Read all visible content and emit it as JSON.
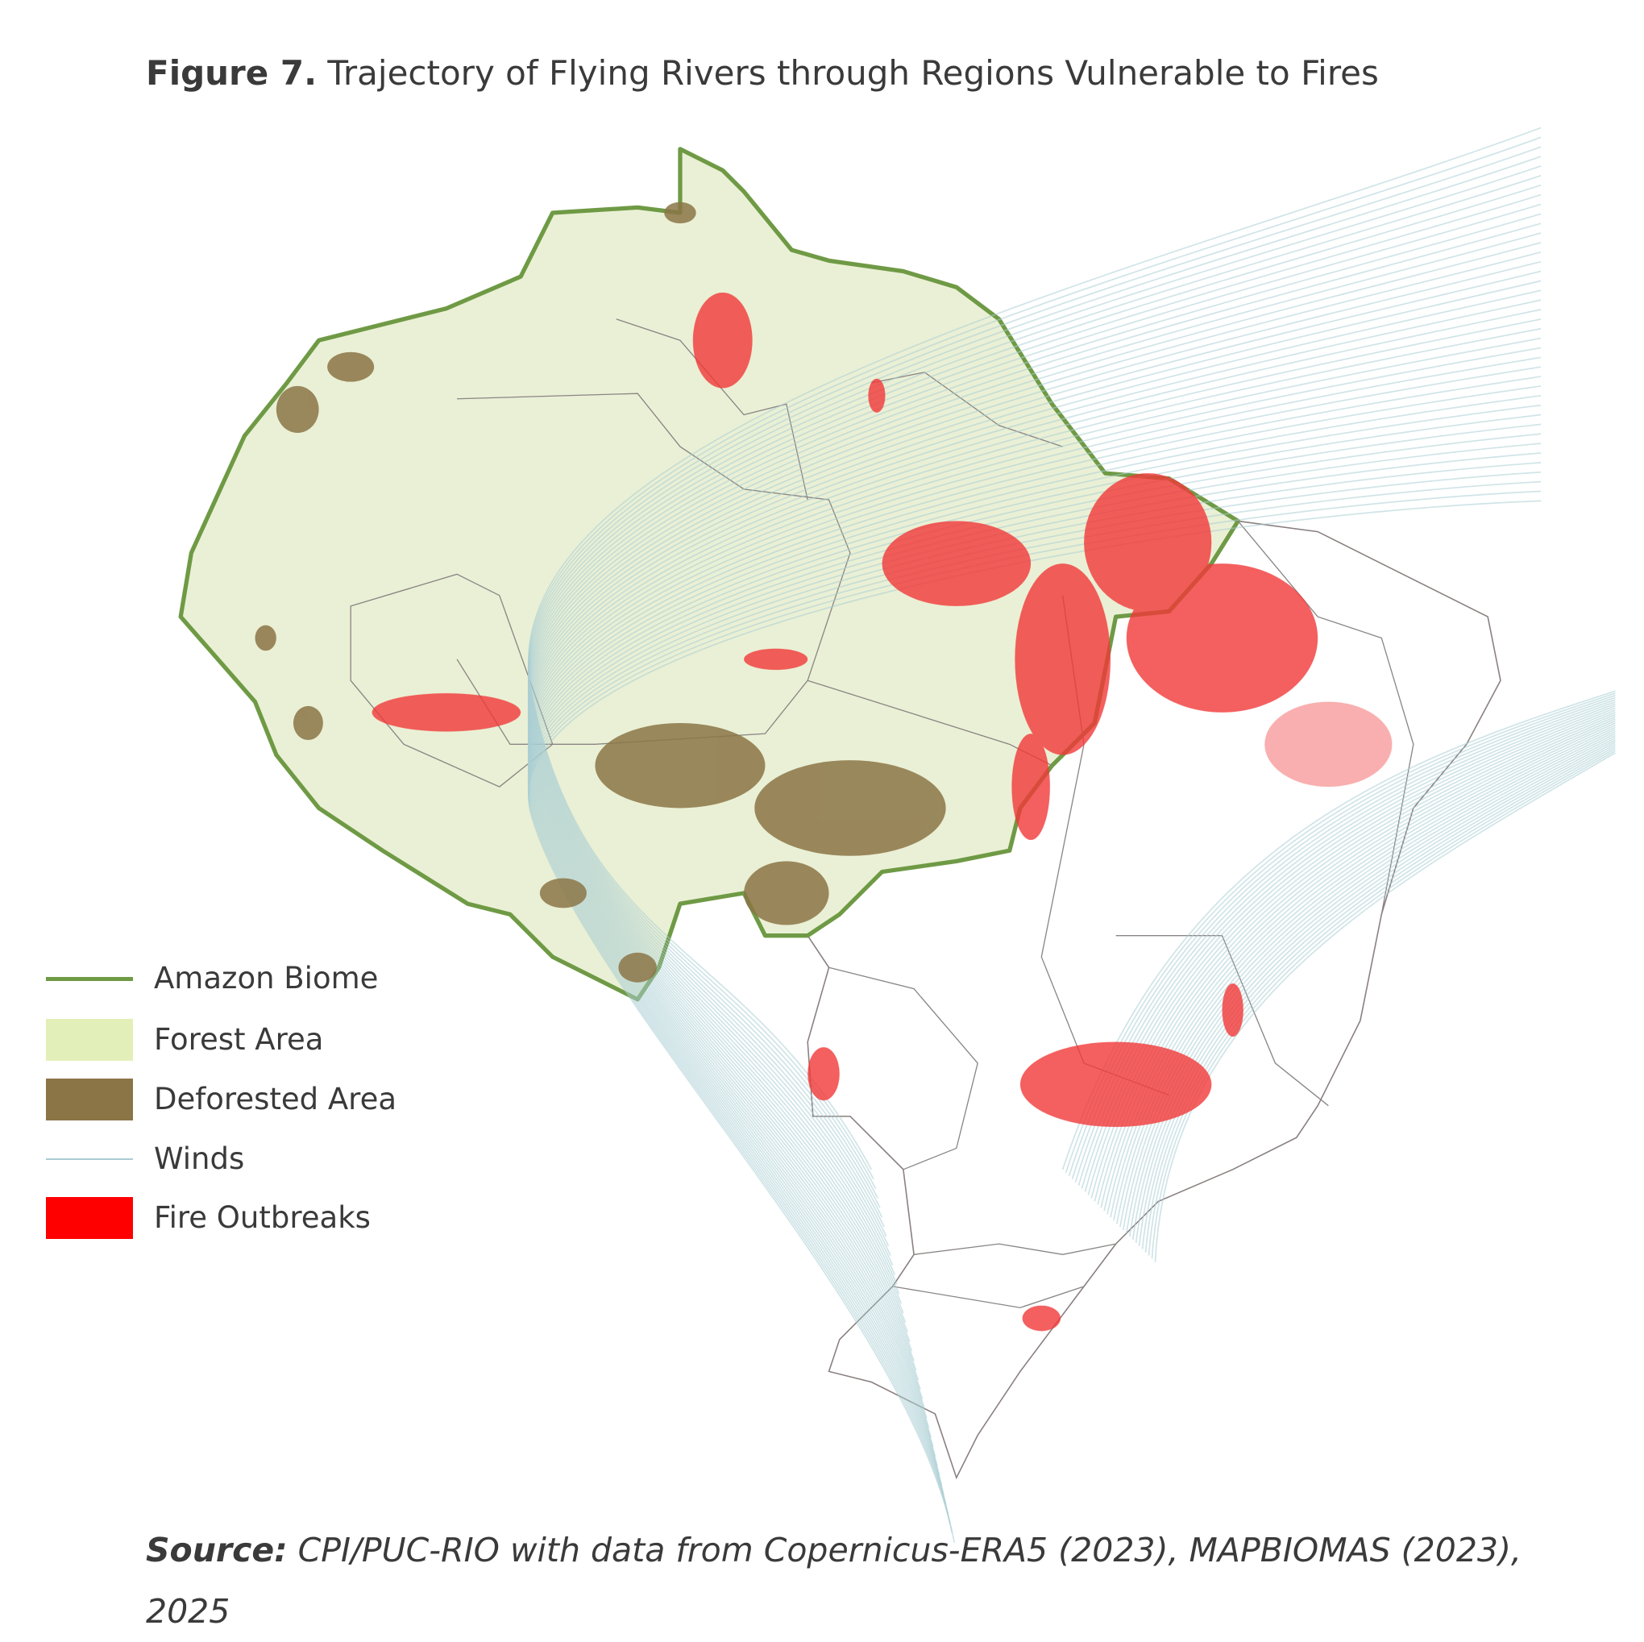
{
  "figure": {
    "label": "Figure 7.",
    "title": "Trajectory of Flying Rivers through Regions Vulnerable to Fires"
  },
  "legend": [
    "Amazon Biome",
    "Forest Area",
    "Deforested Area",
    "Winds",
    "Fire Outbreaks"
  ],
  "source": {
    "label": "Source:",
    "text": "CPI/PUC-RIO with data from Copernicus-ERA5 (2023), MAPBIOMAS (2023), 2025"
  }
}
